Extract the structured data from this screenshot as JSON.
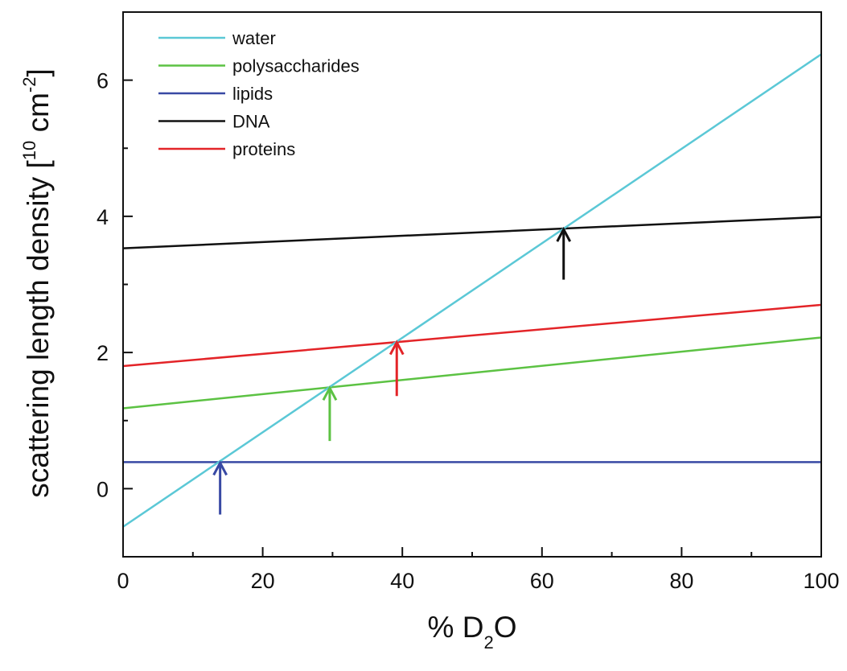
{
  "chart_data": {
    "type": "line",
    "title": "",
    "xlabel": {
      "prefix": "% D",
      "subscript": "2",
      "suffix": "O"
    },
    "ylabel": {
      "main": "scattering length density [10",
      "exp1": "10",
      "mid": " cm",
      "exp2": "-2",
      "end": "]"
    },
    "xlim": [
      0,
      100
    ],
    "ylim": [
      -1,
      7
    ],
    "xticks": [
      0,
      20,
      40,
      60,
      80,
      100
    ],
    "xminor": [
      10,
      30,
      50,
      70,
      90
    ],
    "yticks": [
      0,
      2,
      4,
      6
    ],
    "yminor": [
      -1,
      1,
      3,
      5,
      7
    ],
    "grid": false,
    "legend_position": "top-left",
    "series": [
      {
        "name": "water",
        "color": "#5bc8d6",
        "x": [
          0,
          100
        ],
        "y": [
          -0.56,
          6.38
        ]
      },
      {
        "name": "polysaccharides",
        "color": "#5cc243",
        "x": [
          0,
          100
        ],
        "y": [
          1.18,
          2.22
        ]
      },
      {
        "name": "lipids",
        "color": "#3849a4",
        "x": [
          0,
          100
        ],
        "y": [
          0.39,
          0.39
        ]
      },
      {
        "name": "DNA",
        "color": "#111111",
        "x": [
          0,
          100
        ],
        "y": [
          3.53,
          3.99
        ]
      },
      {
        "name": "proteins",
        "color": "#e32428",
        "x": [
          0,
          100
        ],
        "y": [
          1.8,
          2.7
        ]
      }
    ],
    "annotations": [
      {
        "type": "arrow",
        "color": "#3849a4",
        "x": 13.9,
        "y_from": -0.38,
        "y_to": 0.39
      },
      {
        "type": "arrow",
        "color": "#5cc243",
        "x": 29.6,
        "y_from": 0.7,
        "y_to": 1.49
      },
      {
        "type": "arrow",
        "color": "#e32428",
        "x": 39.2,
        "y_from": 1.36,
        "y_to": 2.16
      },
      {
        "type": "arrow",
        "color": "#111111",
        "x": 63.1,
        "y_from": 3.07,
        "y_to": 3.82
      }
    ]
  }
}
